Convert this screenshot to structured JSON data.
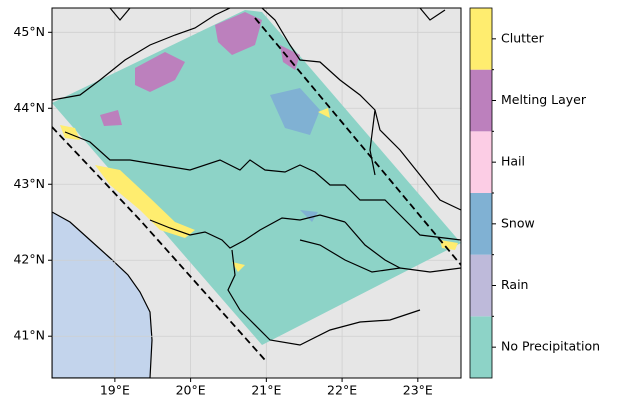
{
  "map": {
    "xlim": [
      18.17,
      23.57
    ],
    "ylim": [
      40.45,
      45.32
    ],
    "lon_ticks": [
      {
        "value": 19,
        "label": "19°E"
      },
      {
        "value": 20,
        "label": "20°E"
      },
      {
        "value": 21,
        "label": "21°E"
      },
      {
        "value": 22,
        "label": "22°E"
      },
      {
        "value": 23,
        "label": "23°E"
      }
    ],
    "lat_ticks": [
      {
        "value": 41,
        "label": "41°N"
      },
      {
        "value": 42,
        "label": "42°N"
      },
      {
        "value": 43,
        "label": "43°N"
      },
      {
        "value": 44,
        "label": "44°N"
      },
      {
        "value": 45,
        "label": "45°N"
      }
    ],
    "grid": true
  },
  "legend": {
    "classes": [
      {
        "name": "No Precipitation",
        "color": "#8dd3c7"
      },
      {
        "name": "Rain",
        "color": "#bebada"
      },
      {
        "name": "Snow",
        "color": "#80b1d3"
      },
      {
        "name": "Hail",
        "color": "#fccde5"
      },
      {
        "name": "Melting Layer",
        "color": "#bc80bd"
      },
      {
        "name": "Clutter",
        "color": "#ffed6f"
      }
    ]
  }
}
